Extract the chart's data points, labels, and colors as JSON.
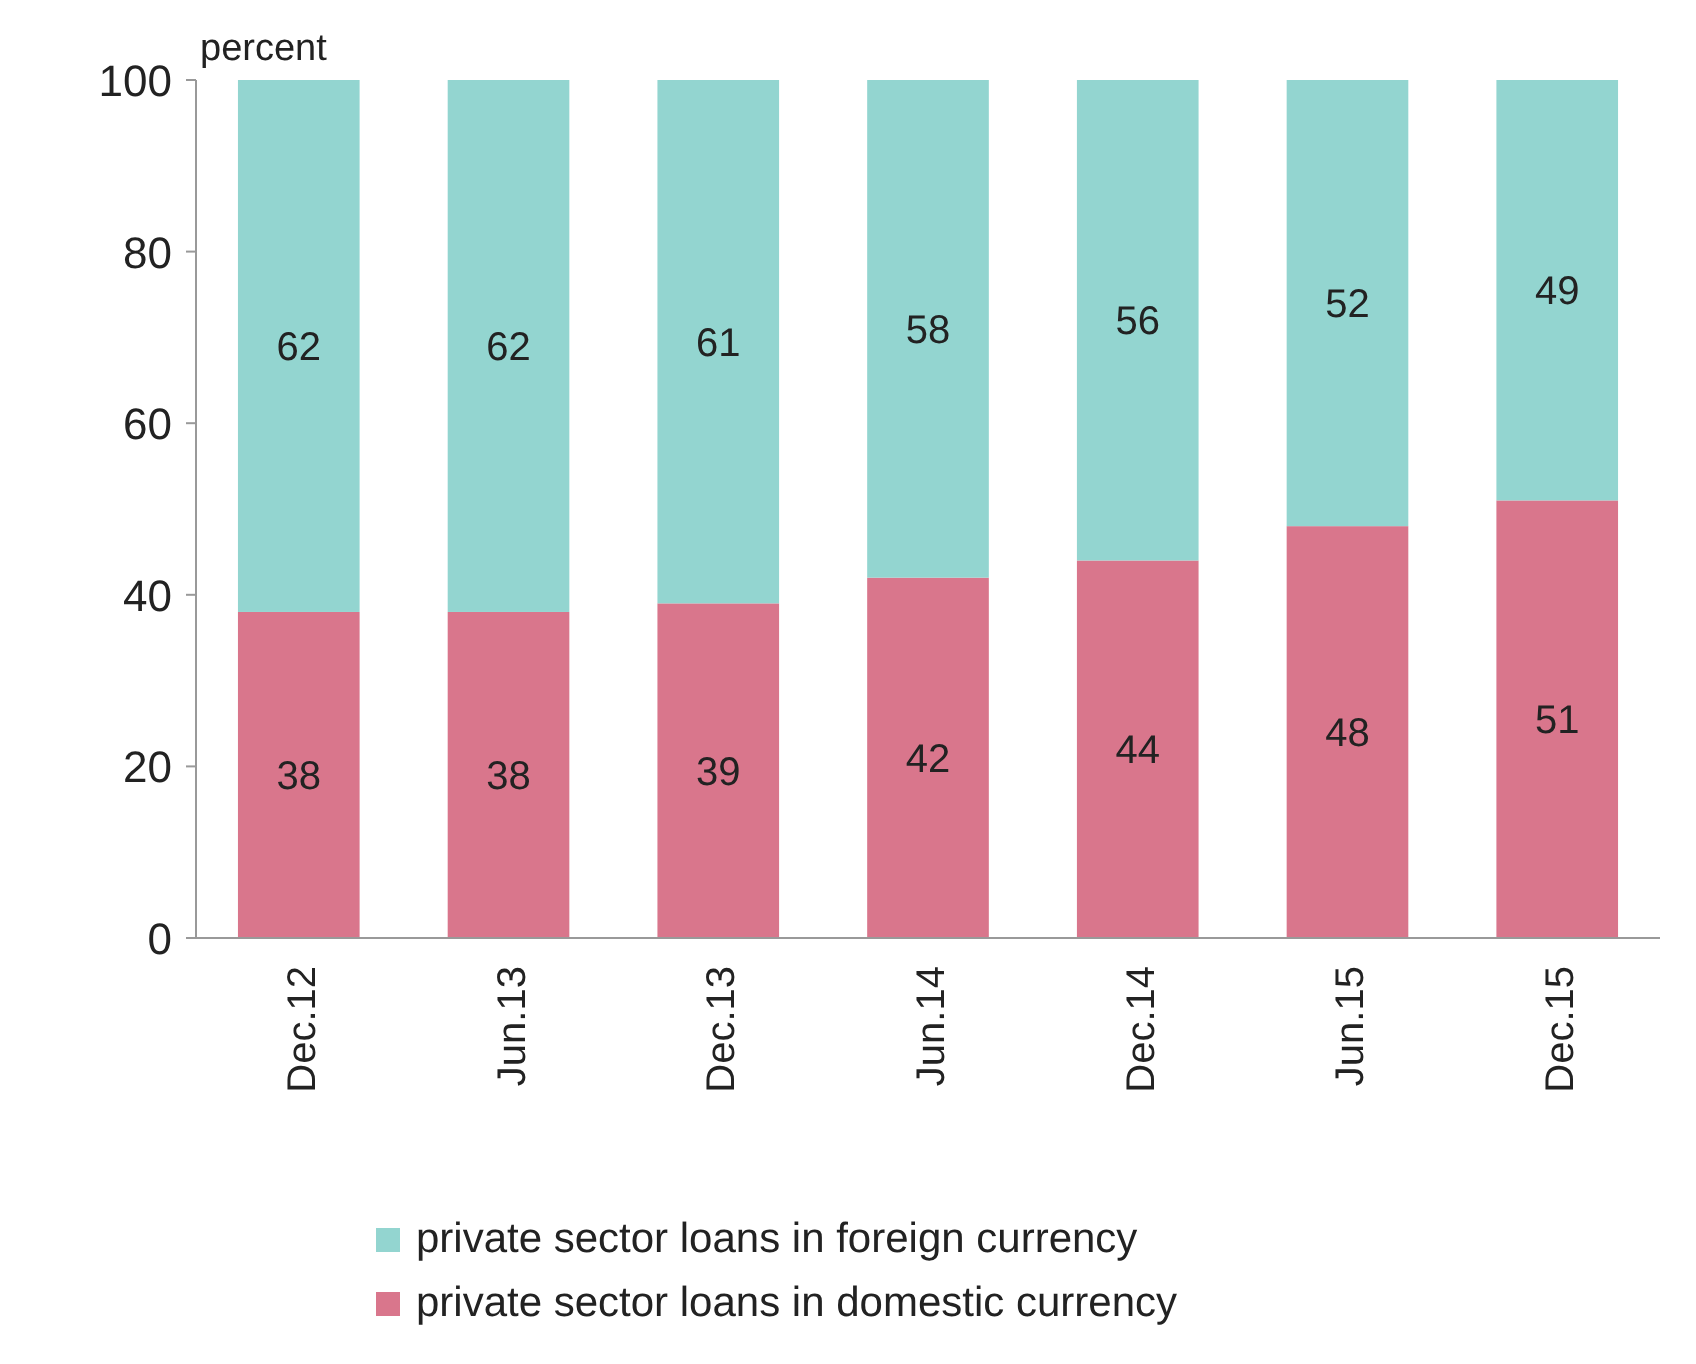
{
  "chart_data": {
    "type": "bar",
    "ylabel": "percent",
    "categories": [
      "Dec.12",
      "Jun.13",
      "Dec.13",
      "Jun.14",
      "Dec.14",
      "Jun.15",
      "Dec.15"
    ],
    "series": [
      {
        "name": "private sector loans in domestic currency",
        "color": "#d9768c",
        "values": [
          38,
          38,
          39,
          42,
          44,
          48,
          51
        ]
      },
      {
        "name": "private sector loans in foreign currency",
        "color": "#93d5d0",
        "values": [
          62,
          62,
          61,
          58,
          56,
          52,
          49
        ]
      }
    ],
    "stacked": true,
    "data_labels": true,
    "ylim": [
      0,
      100
    ],
    "yticks": [
      0,
      20,
      40,
      60,
      80,
      100
    ],
    "grid": false,
    "legend": "bottom"
  }
}
